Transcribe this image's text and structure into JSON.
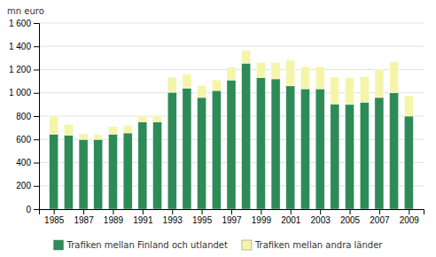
{
  "chart_data": {
    "type": "bar",
    "stacked": true,
    "ylabel": "mn euro",
    "x": [
      1985,
      1986,
      1987,
      1988,
      1989,
      1990,
      1991,
      1992,
      1993,
      1994,
      1995,
      1996,
      1997,
      1998,
      1999,
      2000,
      2001,
      2002,
      2003,
      2004,
      2005,
      2006,
      2007,
      2008,
      2009
    ],
    "series": [
      {
        "name": "Trafiken mellan Finland och utlandet",
        "color": "#2e8b57",
        "values": [
          645,
          635,
          600,
          600,
          645,
          655,
          750,
          750,
          1005,
          1040,
          960,
          1020,
          1110,
          1255,
          1130,
          1120,
          1060,
          1035,
          1035,
          905,
          900,
          920,
          960,
          1000,
          800
        ]
      },
      {
        "name": "Trafiken mellan andra länder",
        "color": "#f5f5aa",
        "values": [
          155,
          95,
          50,
          40,
          65,
          65,
          50,
          50,
          130,
          120,
          100,
          90,
          110,
          110,
          130,
          140,
          220,
          190,
          190,
          230,
          230,
          220,
          240,
          265,
          175
        ]
      }
    ],
    "xlim": [
      1984,
      2010
    ],
    "xticks": [
      1985,
      1987,
      1989,
      1991,
      1993,
      1995,
      1997,
      1999,
      2001,
      2003,
      2005,
      2007,
      2009
    ],
    "ylim": [
      0,
      1600
    ],
    "yticks": [
      0,
      200,
      400,
      600,
      800,
      {
        "value": 1000,
        "label": "1 000"
      },
      {
        "value": 1200,
        "label": "1 200"
      },
      {
        "value": 1400,
        "label": "1 400"
      },
      {
        "value": 1600,
        "label": "1 600"
      }
    ],
    "grid": "y",
    "legend": "bottom"
  }
}
